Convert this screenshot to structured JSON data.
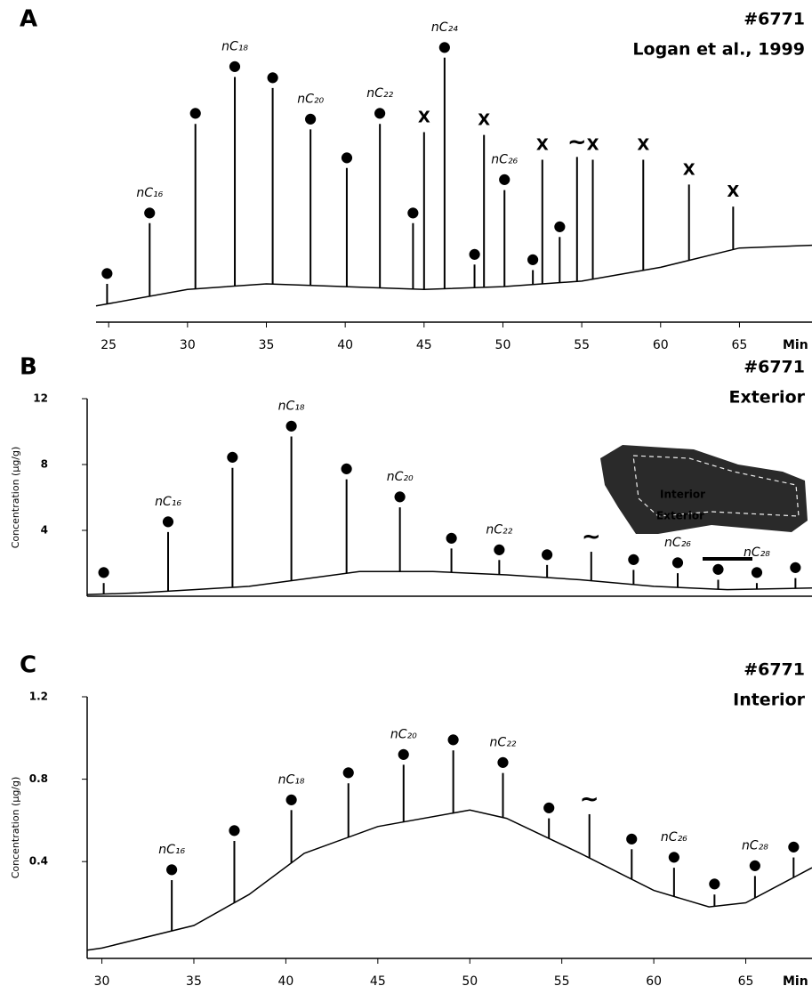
{
  "chart_data": [
    {
      "type": "line",
      "panel": "A",
      "titles": [
        "#6771",
        "Logan et al., 1999"
      ],
      "x_label": "Min",
      "color": "#000000",
      "xlim": [
        24.2,
        69.6
      ],
      "ylim": [
        0,
        100
      ],
      "xticks": [
        25,
        30,
        35,
        40,
        45,
        50,
        55,
        60,
        65
      ],
      "x": [
        24.2,
        30,
        35,
        40,
        45,
        50,
        55,
        60,
        65,
        69.6
      ],
      "values": [
        2,
        8,
        10,
        9,
        8,
        9,
        11,
        16,
        23,
        24
      ],
      "peaks": {
        "x": [
          24.9,
          27.6,
          30.5,
          33.0,
          35.4,
          37.8,
          40.1,
          42.2,
          44.3,
          45.0,
          46.3,
          48.2,
          48.8,
          50.1,
          51.9,
          52.5,
          53.6,
          54.7,
          55.7,
          58.9,
          61.8,
          64.6
        ],
        "values": [
          10,
          32,
          68,
          85,
          81,
          66,
          52,
          68,
          32,
          65,
          92,
          17,
          64,
          44,
          15,
          55,
          27,
          56,
          55,
          55,
          46,
          38
        ],
        "symbols": [
          "●",
          "●",
          "●",
          "●",
          "●",
          "●",
          "●",
          "●",
          "●",
          "X",
          "●",
          "●",
          "X",
          "●",
          "●",
          "X",
          "●",
          "~",
          "X",
          "X",
          "X",
          "X"
        ],
        "labels": [
          null,
          "nC₁₆",
          null,
          "nC₁₈",
          null,
          "nC₂₀",
          null,
          "nC₂₂",
          null,
          null,
          "nC₂₄",
          null,
          null,
          "nC₂₆",
          null,
          null,
          null,
          null,
          null,
          null,
          null,
          null
        ]
      }
    },
    {
      "type": "line",
      "panel": "B",
      "titles": [
        "#6771",
        "Exterior"
      ],
      "y_label": "Concentration (µg/g)",
      "color": "#000000",
      "xlim": [
        29.2,
        68.6
      ],
      "ylim": [
        0,
        12
      ],
      "yticks": [
        4,
        8,
        12
      ],
      "x": [
        29.2,
        32,
        35,
        38,
        40,
        44,
        48,
        52,
        56,
        60,
        64,
        68.6
      ],
      "values": [
        0.1,
        0.2,
        0.4,
        0.6,
        0.9,
        1.5,
        1.5,
        1.3,
        1.0,
        0.6,
        0.4,
        0.5
      ],
      "peaks": {
        "x": [
          30.1,
          33.6,
          37.1,
          40.3,
          43.3,
          46.2,
          49.0,
          51.6,
          54.2,
          56.6,
          58.9,
          61.3,
          63.5,
          65.6,
          67.7
        ],
        "values": [
          0.8,
          3.9,
          7.8,
          9.7,
          7.1,
          5.4,
          2.9,
          2.2,
          1.9,
          2.7,
          1.6,
          1.4,
          1.0,
          0.8,
          1.1
        ],
        "symbols": [
          "●",
          "●",
          "●",
          "●",
          "●",
          "●",
          "●",
          "●",
          "●",
          "~",
          "●",
          "●",
          "●",
          "●",
          "●"
        ],
        "labels": [
          null,
          "nC₁₆",
          null,
          "nC₁₈",
          null,
          "nC₂₀",
          null,
          "nC₂₂",
          null,
          null,
          null,
          "nC₂₆",
          null,
          "nC₂₈",
          null
        ]
      },
      "inset_labels": [
        "Interior",
        "Exterior"
      ]
    },
    {
      "type": "line",
      "panel": "C",
      "titles": [
        "#6771",
        "Interior"
      ],
      "y_label": "Concentration (µg/g)",
      "x_label": "Min",
      "color": "#000000",
      "xlim": [
        29.2,
        68.6
      ],
      "ylim": [
        -0.07,
        1.2
      ],
      "yticks": [
        0.4,
        0.8,
        1.2
      ],
      "xticks": [
        30,
        35,
        40,
        45,
        50,
        55,
        60,
        65
      ],
      "x": [
        29.2,
        30,
        35,
        38,
        41,
        45,
        50,
        52,
        56,
        60,
        63,
        65,
        68.6
      ],
      "values": [
        -0.03,
        -0.02,
        0.09,
        0.24,
        0.44,
        0.57,
        0.65,
        0.61,
        0.44,
        0.26,
        0.18,
        0.2,
        0.37
      ],
      "peaks": {
        "x": [
          33.8,
          37.2,
          40.3,
          43.4,
          46.4,
          49.1,
          51.8,
          54.3,
          56.5,
          58.8,
          61.1,
          63.3,
          65.5,
          67.6
        ],
        "values": [
          0.31,
          0.5,
          0.65,
          0.78,
          0.87,
          0.94,
          0.83,
          0.61,
          0.63,
          0.46,
          0.37,
          0.24,
          0.33,
          0.42
        ],
        "symbols": [
          "●",
          "●",
          "●",
          "●",
          "●",
          "●",
          "●",
          "●",
          "~",
          "●",
          "●",
          "●",
          "●",
          "●"
        ],
        "labels": [
          "nC₁₆",
          null,
          "nC₁₈",
          null,
          "nC₂₀",
          null,
          "nC₂₂",
          null,
          null,
          null,
          "nC₂₆",
          null,
          "nC₂₈",
          null
        ]
      }
    }
  ]
}
